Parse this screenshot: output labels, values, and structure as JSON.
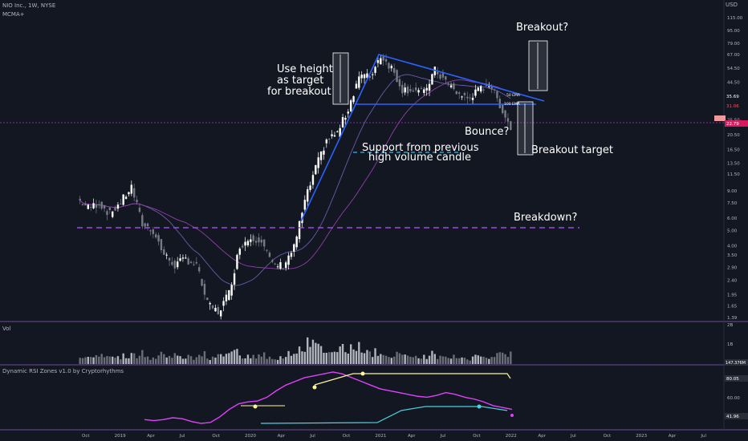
{
  "header": {
    "symbol": "NIO Inc., 1W, NYSE",
    "indicator": "MCMA+",
    "currency": "USD",
    "vol_label": "Vol",
    "rsi_label": "Dynamic RSI Zones v1.0 by Cryptorhythms"
  },
  "annotations": {
    "breakout_q": "Breakout?",
    "use_height_1": "Use height",
    "use_height_2": "as target",
    "use_height_3": "for breakout",
    "bounce": "Bounce?",
    "support_1": "Support from previous",
    "support_2": "high volume candle",
    "breakout_target": "Breakout target",
    "breakdown": "Breakdown?",
    "ema50": "50 EMA",
    "ema100": "100 EMA"
  },
  "price_labels": {
    "last": "35.69",
    "level": "31.06",
    "close": "22.79",
    "vol_last": "147.376M",
    "rsi_level": "80.05",
    "rsi_last": "41.96"
  },
  "colors": {
    "background": "#131722",
    "up": "#ffffff",
    "down": "#787b86",
    "trendline": "#2962ff",
    "support": "#2ebce8",
    "breakdown": "#9c4fd6",
    "rsi": "#e040fb",
    "rsi_upper": "#fff59d",
    "rsi_lower": "#4dd0e1",
    "price_line": "#b02fd6"
  },
  "chart_data": [
    {
      "type": "candlestick",
      "title": "NIO Inc., 1W, NYSE",
      "y_scale": "log",
      "y_ticks": [
        "115.00",
        "95.00",
        "79.00",
        "67.00",
        "54.50",
        "44.50",
        "35.69",
        "31.06",
        "25.50",
        "20.50",
        "16.50",
        "13.50",
        "11.50",
        "9.00",
        "7.50",
        "6.00",
        "5.00",
        "4.00",
        "3.50",
        "2.90",
        "2.40",
        "1.95",
        "1.65",
        "1.39"
      ],
      "x_ticks": [
        "Oct",
        "2019",
        "Apr",
        "Jul",
        "Oct",
        "2020",
        "Apr",
        "Jul",
        "Oct",
        "2021",
        "Apr",
        "Jul",
        "Oct",
        "2022",
        "Apr",
        "Jul",
        "Oct",
        "2023",
        "Apr",
        "Jul"
      ],
      "close_path": [
        [
          "2018-09",
          8.0
        ],
        [
          "2018-10",
          7.0
        ],
        [
          "2018-11",
          7.5
        ],
        [
          "2018-12",
          6.4
        ],
        [
          "2019-01",
          7.6
        ],
        [
          "2019-02",
          9.5
        ],
        [
          "2019-03",
          5.5
        ],
        [
          "2019-04",
          5.0
        ],
        [
          "2019-05",
          3.5
        ],
        [
          "2019-06",
          3.0
        ],
        [
          "2019-07",
          3.3
        ],
        [
          "2019-08",
          3.0
        ],
        [
          "2019-09",
          1.7
        ],
        [
          "2019-10",
          1.5
        ],
        [
          "2019-11",
          2.0
        ],
        [
          "2019-12",
          4.0
        ],
        [
          "2020-01",
          4.5
        ],
        [
          "2020-02",
          4.4
        ],
        [
          "2020-03",
          3.0
        ],
        [
          "2020-04",
          3.0
        ],
        [
          "2020-05",
          3.9
        ],
        [
          "2020-06",
          7.7
        ],
        [
          "2020-07",
          12.5
        ],
        [
          "2020-08",
          19.0
        ],
        [
          "2020-09",
          21.0
        ],
        [
          "2020-10",
          30.0
        ],
        [
          "2020-11",
          49.0
        ],
        [
          "2020-12",
          48.0
        ],
        [
          "2021-01",
          66.0
        ],
        [
          "2021-02",
          55.0
        ],
        [
          "2021-03",
          40.0
        ],
        [
          "2021-04",
          40.0
        ],
        [
          "2021-05",
          38.0
        ],
        [
          "2021-06",
          53.0
        ],
        [
          "2021-07",
          45.0
        ],
        [
          "2021-08",
          38.0
        ],
        [
          "2021-09",
          35.0
        ],
        [
          "2021-10",
          39.0
        ],
        [
          "2021-11",
          44.0
        ],
        [
          "2021-12",
          32.0
        ],
        [
          "2022-01",
          22.79
        ]
      ],
      "levels": {
        "breakdown_support": 5.2,
        "volume_candle_support": 16.0,
        "triangle_base": 36.0,
        "breakout_target": 15.5,
        "breakout_projection": [
          44.5,
          85.0
        ]
      }
    },
    {
      "type": "bar",
      "title": "Vol",
      "y_ticks": [
        "2B",
        "1B"
      ],
      "last_value": "147.376M"
    },
    {
      "type": "line",
      "title": "Dynamic RSI Zones v1.0 by Cryptorhythms",
      "y_ticks": [
        "80.05",
        "60.00",
        "41.96"
      ],
      "series": [
        {
          "name": "RSI",
          "values": [
            31,
            30,
            31,
            33,
            32,
            29,
            27,
            28,
            34,
            42,
            48,
            50,
            51,
            55,
            62,
            68,
            72,
            76,
            78,
            80,
            82,
            80,
            76,
            72,
            68,
            64,
            62,
            60,
            58,
            56,
            55,
            57,
            60,
            58,
            55,
            53,
            50,
            46,
            44,
            42
          ]
        }
      ]
    }
  ]
}
